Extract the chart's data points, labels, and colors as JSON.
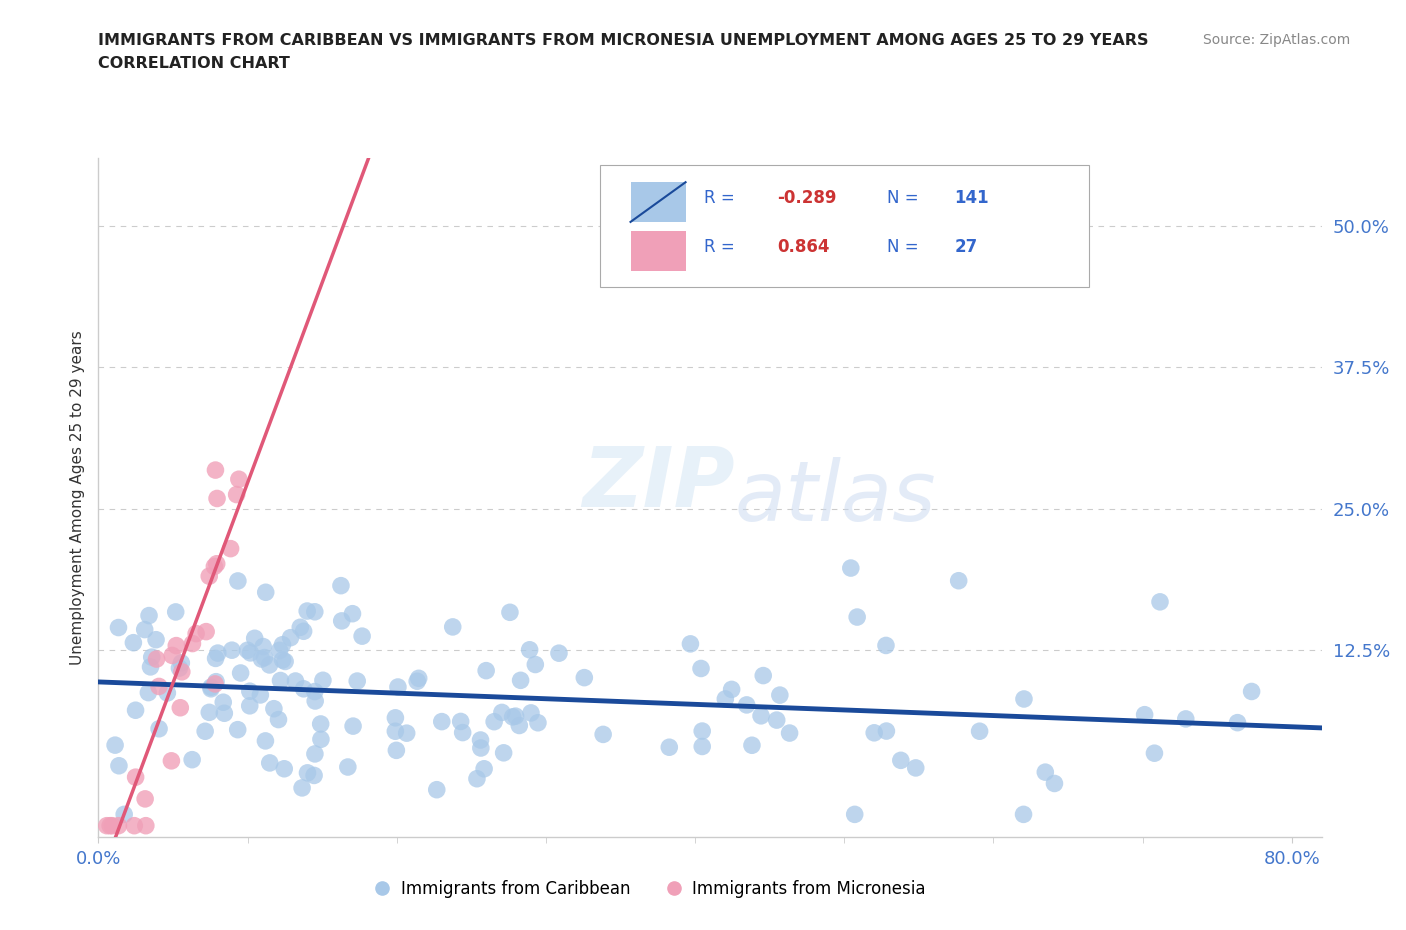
{
  "title_line1": "IMMIGRANTS FROM CARIBBEAN VS IMMIGRANTS FROM MICRONESIA UNEMPLOYMENT AMONG AGES 25 TO 29 YEARS",
  "title_line2": "CORRELATION CHART",
  "source_text": "Source: ZipAtlas.com",
  "ylabel": "Unemployment Among Ages 25 to 29 years",
  "xlim": [
    0.0,
    0.82
  ],
  "ylim": [
    -0.04,
    0.56
  ],
  "yticks": [
    0.0,
    0.125,
    0.25,
    0.375,
    0.5
  ],
  "ytick_labels": [
    "",
    "12.5%",
    "25.0%",
    "37.5%",
    "50.0%"
  ],
  "caribbean_color": "#a8c8e8",
  "micronesia_color": "#f0a0b8",
  "caribbean_line_color": "#1a4a9a",
  "micronesia_line_color": "#e05878",
  "R_caribbean": -0.289,
  "N_caribbean": 141,
  "R_micronesia": 0.864,
  "N_micronesia": 27,
  "watermark_ZIP": "ZIP",
  "watermark_atlas": "atlas",
  "legend_label_caribbean": "Immigrants from Caribbean",
  "legend_label_micronesia": "Immigrants from Micronesia",
  "caribbean_seed": 12345,
  "micronesia_seed": 99
}
